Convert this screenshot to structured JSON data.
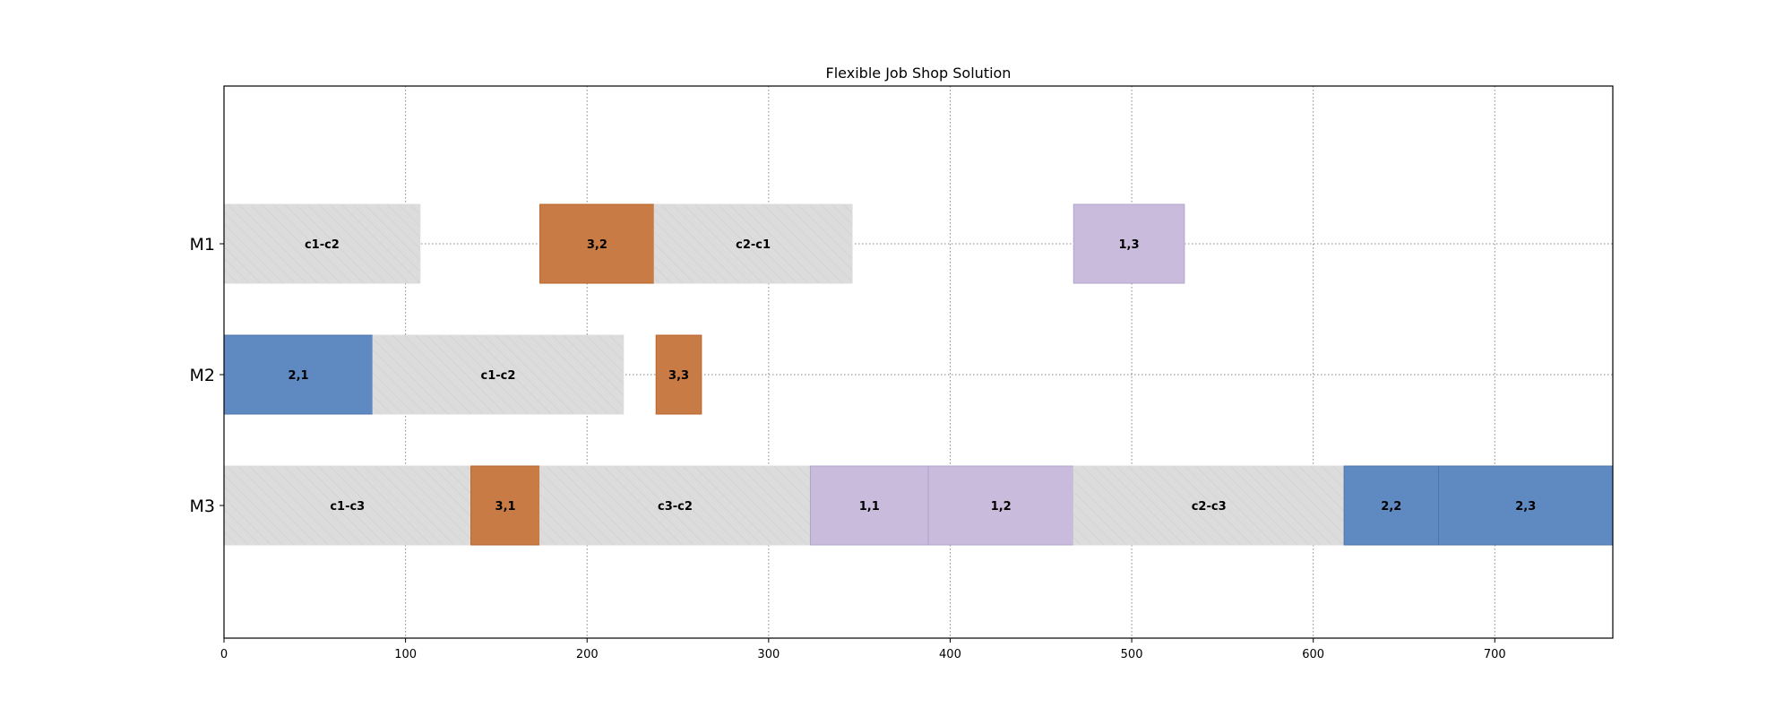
{
  "chart_data": {
    "type": "gantt",
    "title": "Flexible Job Shop Solution",
    "machines": [
      "M1",
      "M2",
      "M3"
    ],
    "xlim": [
      0,
      765
    ],
    "xticks": [
      0,
      100,
      200,
      300,
      400,
      500,
      600,
      700
    ],
    "grid": true,
    "colors": {
      "job1": "#c8bbdb",
      "job2": "#5f8ac1",
      "job3": "#c97b45",
      "changeover": "#dcdcdc"
    },
    "tasks": [
      {
        "machine": "M1",
        "label": "c1-c2",
        "start": 0,
        "end": 108,
        "kind": "changeover"
      },
      {
        "machine": "M1",
        "label": "3,2",
        "start": 174,
        "end": 237,
        "kind": "job3"
      },
      {
        "machine": "M1",
        "label": "c2-c1",
        "start": 237,
        "end": 346,
        "kind": "changeover"
      },
      {
        "machine": "M1",
        "label": "1,3",
        "start": 468,
        "end": 529,
        "kind": "job1"
      },
      {
        "machine": "M2",
        "label": "2,1",
        "start": 0,
        "end": 82,
        "kind": "job2"
      },
      {
        "machine": "M2",
        "label": "c1-c2",
        "start": 82,
        "end": 220,
        "kind": "changeover"
      },
      {
        "machine": "M2",
        "label": "3,3",
        "start": 238,
        "end": 263,
        "kind": "job3"
      },
      {
        "machine": "M3",
        "label": "c1-c3",
        "start": 0,
        "end": 136,
        "kind": "changeover"
      },
      {
        "machine": "M3",
        "label": "3,1",
        "start": 136,
        "end": 174,
        "kind": "job3"
      },
      {
        "machine": "M3",
        "label": "c3-c2",
        "start": 174,
        "end": 323,
        "kind": "changeover"
      },
      {
        "machine": "M3",
        "label": "1,1",
        "start": 323,
        "end": 388,
        "kind": "job1"
      },
      {
        "machine": "M3",
        "label": "1,2",
        "start": 388,
        "end": 468,
        "kind": "job1"
      },
      {
        "machine": "M3",
        "label": "c2-c3",
        "start": 468,
        "end": 617,
        "kind": "changeover"
      },
      {
        "machine": "M3",
        "label": "2,2",
        "start": 617,
        "end": 669,
        "kind": "job2"
      },
      {
        "machine": "M3",
        "label": "2,3",
        "start": 669,
        "end": 765,
        "kind": "job2"
      }
    ]
  }
}
